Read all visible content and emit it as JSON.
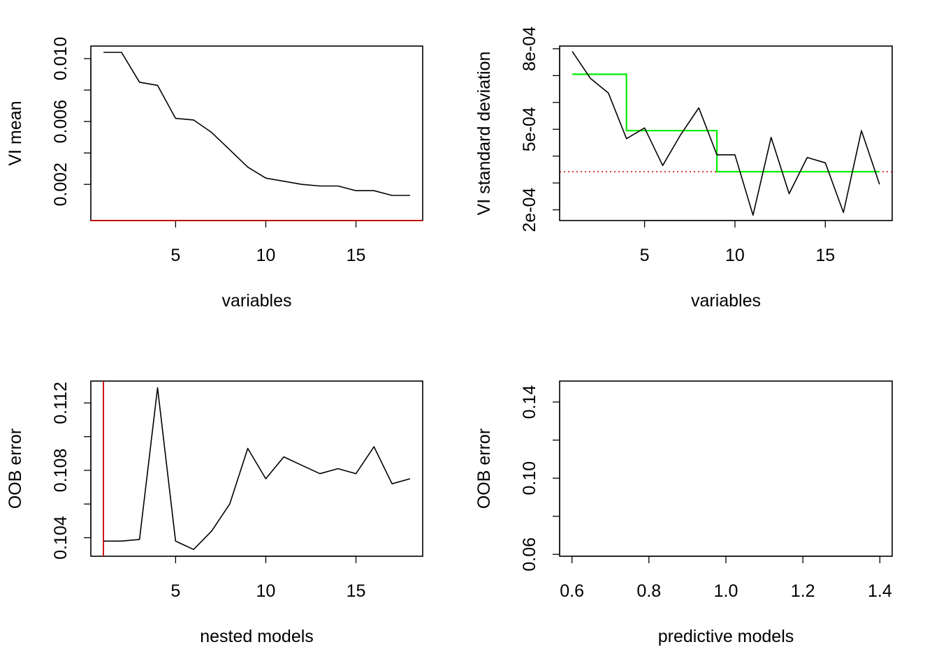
{
  "chart_data": [
    {
      "type": "line",
      "xlabel": "variables",
      "ylabel": "VI mean",
      "xlim": [
        0.3,
        18.7
      ],
      "ylim": [
        -0.0003,
        0.0108
      ],
      "xticks": [
        5,
        10,
        15
      ],
      "xtick_labels": [
        "5",
        "10",
        "15"
      ],
      "yticks": [
        0.002,
        0.004,
        0.006,
        0.008,
        0.01
      ],
      "ytick_labels": [
        "0.002",
        "",
        "0.006",
        "",
        "0.010"
      ],
      "x": [
        1,
        2,
        3,
        4,
        5,
        6,
        7,
        8,
        9,
        10,
        11,
        12,
        13,
        14,
        15,
        16,
        17,
        18
      ],
      "series": [
        {
          "values": [
            0.0104,
            0.0104,
            0.0085,
            0.0083,
            0.0062,
            0.0061,
            0.0053,
            0.0042,
            0.0031,
            0.0024,
            0.0022,
            0.002,
            0.0019,
            0.0019,
            0.0016,
            0.0016,
            0.0013,
            0.0013
          ],
          "color": "#000000"
        }
      ],
      "hlines": [
        {
          "y": -0.0003,
          "color": "#cc0000",
          "style": "solid"
        }
      ],
      "vlines": [],
      "steps": []
    },
    {
      "type": "line",
      "xlabel": "variables",
      "ylabel": "VI standard deviation",
      "xlim": [
        0.3,
        18.7
      ],
      "ylim": [
        0.00016,
        0.00081
      ],
      "xticks": [
        5,
        10,
        15
      ],
      "xtick_labels": [
        "5",
        "10",
        "15"
      ],
      "yticks": [
        0.0002,
        0.0003,
        0.0004,
        0.0005,
        0.0006,
        0.0007,
        0.0008
      ],
      "ytick_labels": [
        "2e-04",
        "",
        "",
        "5e-04",
        "",
        "",
        "8e-04"
      ],
      "x": [
        1,
        2,
        3,
        4,
        5,
        6,
        7,
        8,
        9,
        10,
        11,
        12,
        13,
        14,
        15,
        16,
        17,
        18
      ],
      "series": [
        {
          "values": [
            0.00079,
            0.00069,
            0.000635,
            0.000465,
            0.000505,
            0.000365,
            0.00048,
            0.00058,
            0.000405,
            0.000405,
            0.00018,
            0.00047,
            0.00026,
            0.000395,
            0.000375,
            0.00019,
            0.000495,
            0.000295
          ],
          "color": "#000000"
        }
      ],
      "hlines": [
        {
          "y": 0.000342,
          "color": "#cc0000",
          "style": "dotted"
        }
      ],
      "vlines": [],
      "steps": [
        {
          "points": [
            [
              1,
              0.000705
            ],
            [
              4,
              0.000705
            ],
            [
              4,
              0.000495
            ],
            [
              9,
              0.000495
            ],
            [
              9,
              0.000342
            ],
            [
              18,
              0.000342
            ]
          ],
          "color": "#00ee00"
        }
      ]
    },
    {
      "type": "line",
      "xlabel": "nested models",
      "ylabel": "OOB error",
      "xlim": [
        0.3,
        18.7
      ],
      "ylim": [
        0.1029,
        0.1133
      ],
      "xticks": [
        5,
        10,
        15
      ],
      "xtick_labels": [
        "5",
        "10",
        "15"
      ],
      "yticks": [
        0.104,
        0.106,
        0.108,
        0.11,
        0.112
      ],
      "ytick_labels": [
        "0.104",
        "",
        "0.108",
        "",
        "0.112"
      ],
      "x": [
        1,
        2,
        3,
        4,
        5,
        6,
        7,
        8,
        9,
        10,
        11,
        12,
        13,
        14,
        15,
        16,
        17,
        18
      ],
      "series": [
        {
          "values": [
            0.1038,
            0.1038,
            0.1039,
            0.1129,
            0.1038,
            0.1033,
            0.1044,
            0.106,
            0.1093,
            0.1075,
            0.1088,
            0.1083,
            0.1078,
            0.1081,
            0.1078,
            0.1094,
            0.1072,
            0.1075
          ],
          "color": "#000000"
        }
      ],
      "hlines": [],
      "vlines": [
        {
          "x": 1,
          "color": "#cc0000",
          "style": "solid"
        }
      ],
      "steps": []
    },
    {
      "type": "line",
      "xlabel": "predictive models",
      "ylabel": "OOB error",
      "xlim": [
        0.568,
        1.432
      ],
      "ylim": [
        0.059,
        0.151
      ],
      "xticks": [
        0.6,
        0.8,
        1.0,
        1.2,
        1.4
      ],
      "xtick_labels": [
        "0.6",
        "0.8",
        "1.0",
        "1.2",
        "1.4"
      ],
      "yticks": [
        0.06,
        0.08,
        0.1,
        0.12,
        0.14
      ],
      "ytick_labels": [
        "0.06",
        "",
        "0.10",
        "",
        "0.14"
      ],
      "x": [],
      "series": [],
      "hlines": [],
      "vlines": [],
      "steps": []
    }
  ]
}
